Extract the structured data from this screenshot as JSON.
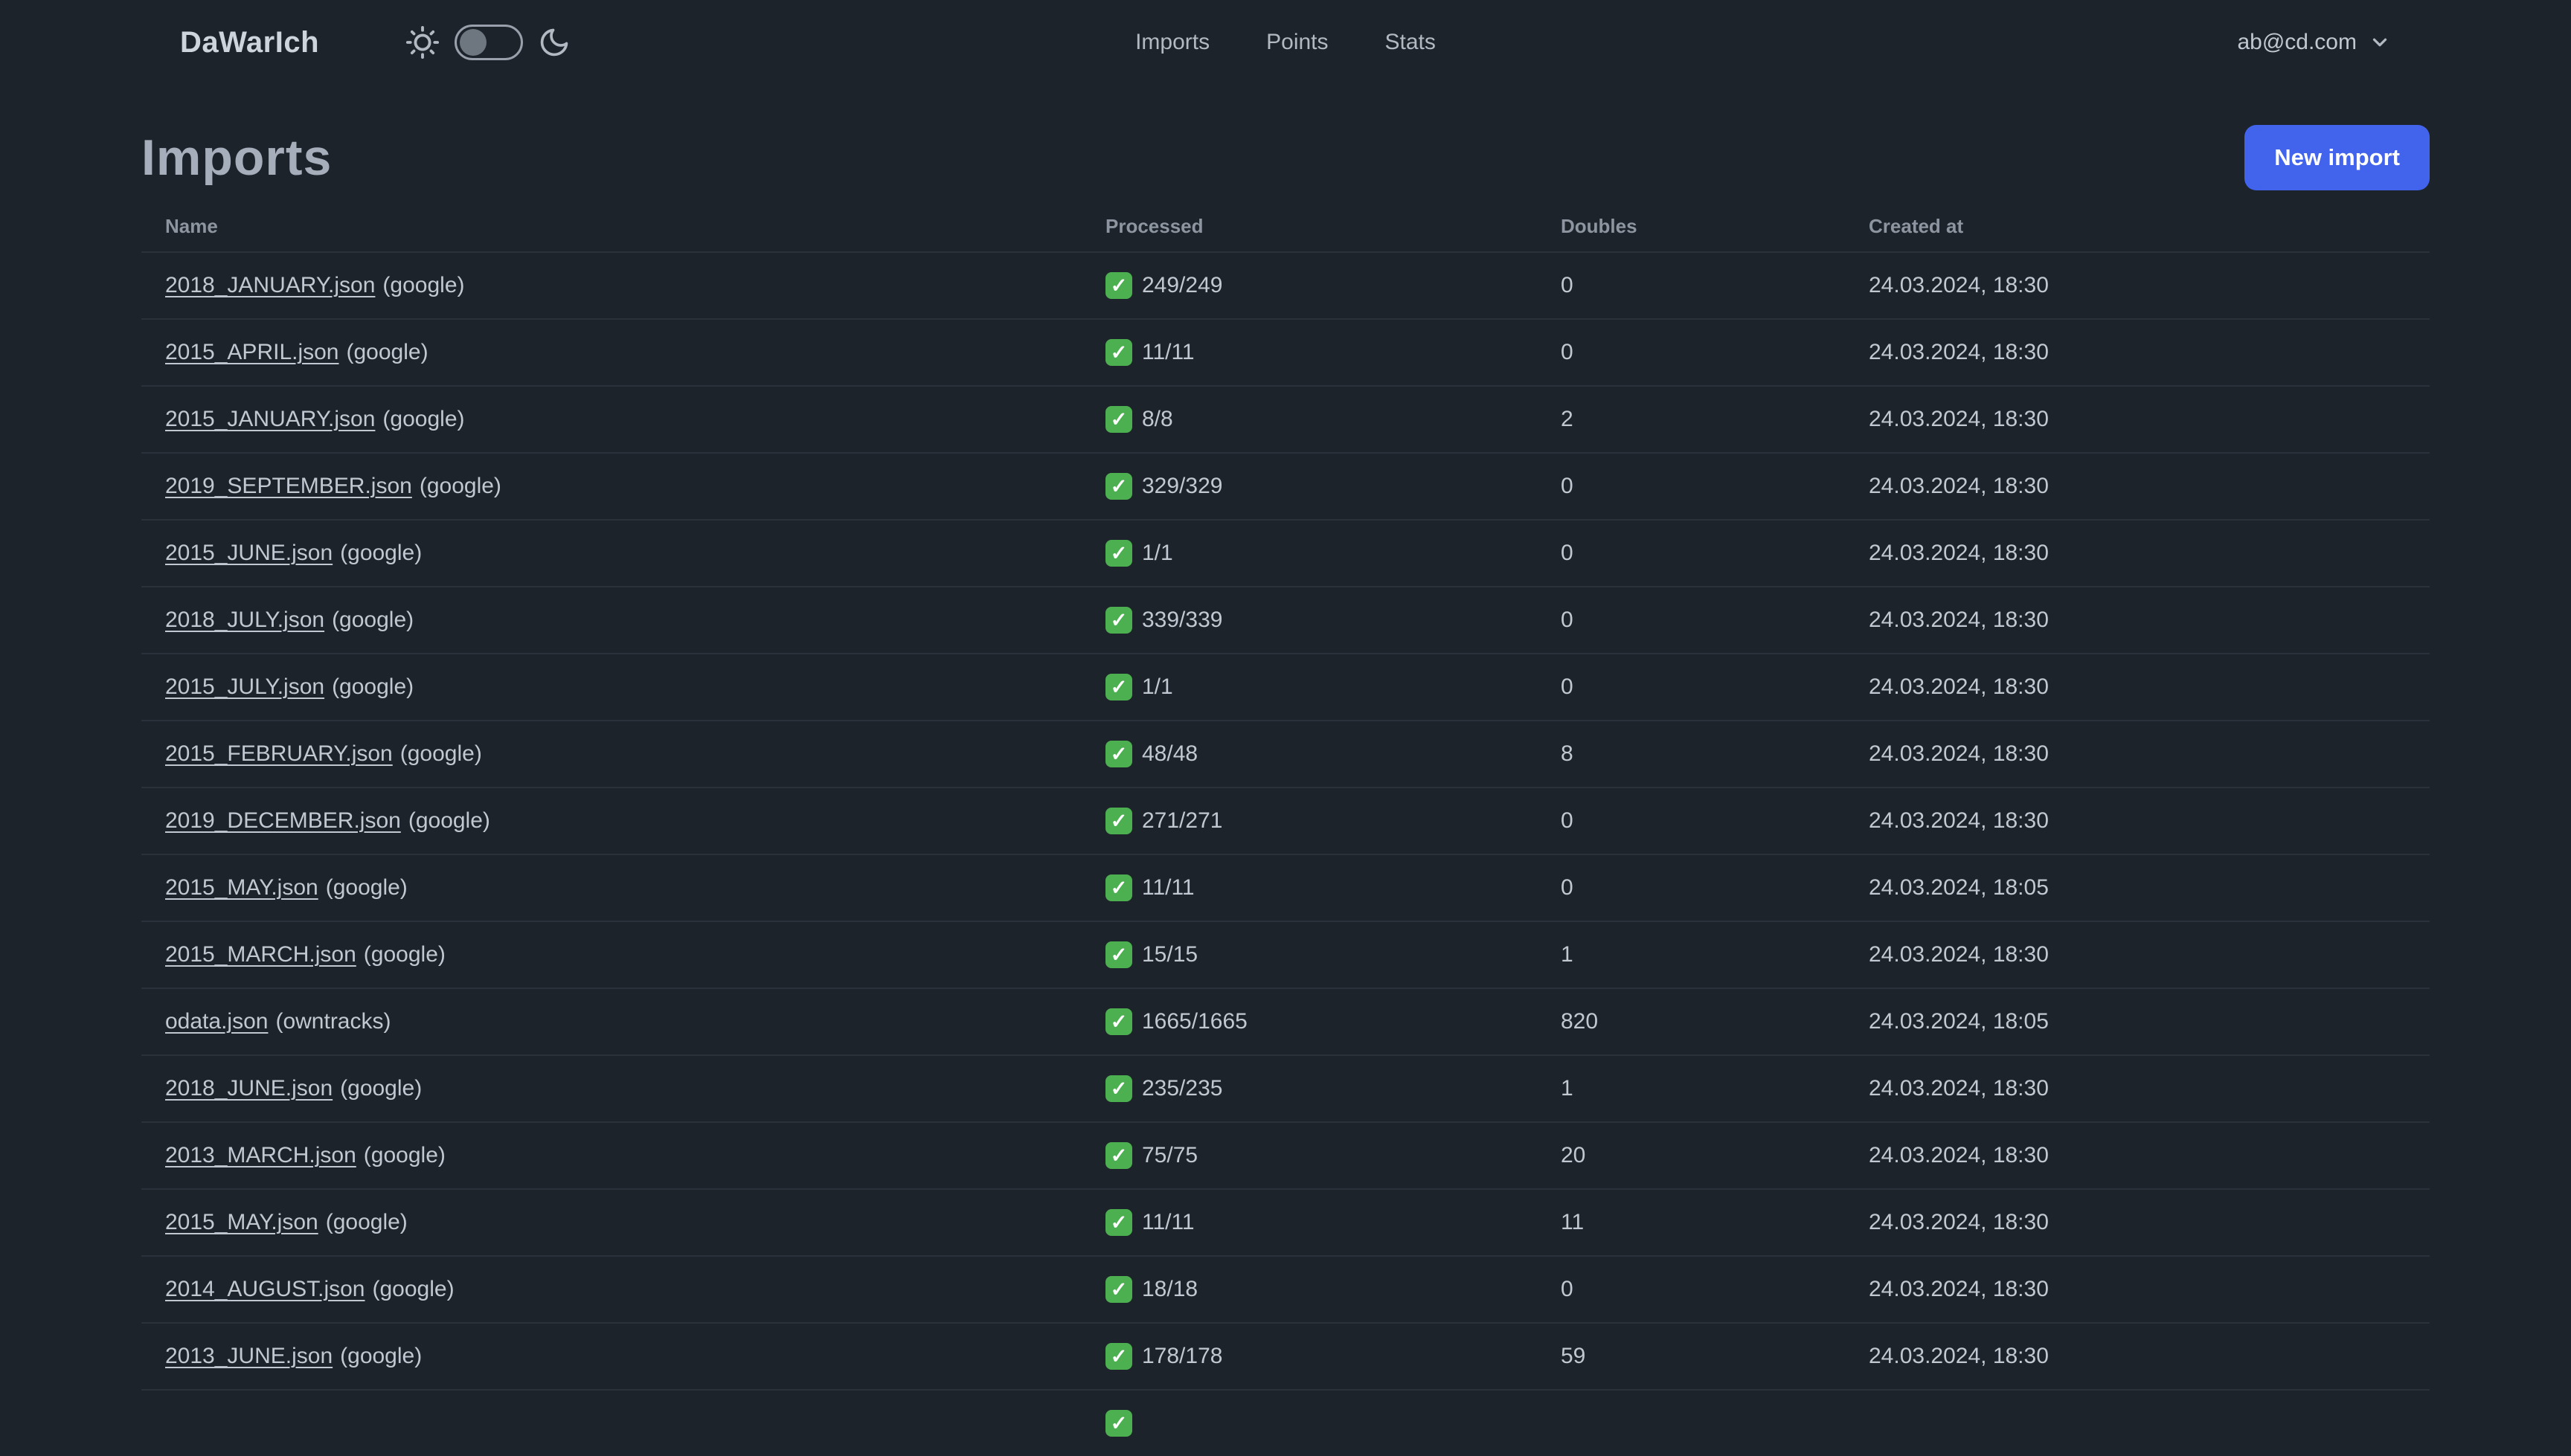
{
  "app": {
    "name": "DaWarIch"
  },
  "nav": {
    "links": [
      {
        "label": "Imports"
      },
      {
        "label": "Points"
      },
      {
        "label": "Stats"
      }
    ],
    "theme_toggle": {
      "checked": false
    },
    "account": {
      "email": "ab@cd.com"
    }
  },
  "page": {
    "title": "Imports",
    "new_import_button": "New import"
  },
  "table": {
    "headers": [
      "Name",
      "Processed",
      "Doubles",
      "Created at"
    ],
    "rows": [
      {
        "name": "2018_JANUARY.json",
        "source": "(google)",
        "processed": "249/249",
        "doubles": "0",
        "created_at": "24.03.2024, 18:30"
      },
      {
        "name": "2015_APRIL.json",
        "source": "(google)",
        "processed": "11/11",
        "doubles": "0",
        "created_at": "24.03.2024, 18:30"
      },
      {
        "name": "2015_JANUARY.json",
        "source": "(google)",
        "processed": "8/8",
        "doubles": "2",
        "created_at": "24.03.2024, 18:30"
      },
      {
        "name": "2019_SEPTEMBER.json",
        "source": "(google)",
        "processed": "329/329",
        "doubles": "0",
        "created_at": "24.03.2024, 18:30"
      },
      {
        "name": "2015_JUNE.json",
        "source": "(google)",
        "processed": "1/1",
        "doubles": "0",
        "created_at": "24.03.2024, 18:30"
      },
      {
        "name": "2018_JULY.json",
        "source": "(google)",
        "processed": "339/339",
        "doubles": "0",
        "created_at": "24.03.2024, 18:30"
      },
      {
        "name": "2015_JULY.json",
        "source": "(google)",
        "processed": "1/1",
        "doubles": "0",
        "created_at": "24.03.2024, 18:30"
      },
      {
        "name": "2015_FEBRUARY.json",
        "source": "(google)",
        "processed": "48/48",
        "doubles": "8",
        "created_at": "24.03.2024, 18:30"
      },
      {
        "name": "2019_DECEMBER.json",
        "source": "(google)",
        "processed": "271/271",
        "doubles": "0",
        "created_at": "24.03.2024, 18:30"
      },
      {
        "name": "2015_MAY.json",
        "source": "(google)",
        "processed": "11/11",
        "doubles": "0",
        "created_at": "24.03.2024, 18:05"
      },
      {
        "name": "2015_MARCH.json",
        "source": "(google)",
        "processed": "15/15",
        "doubles": "1",
        "created_at": "24.03.2024, 18:30"
      },
      {
        "name": "odata.json",
        "source": "(owntracks)",
        "processed": "1665/1665",
        "doubles": "820",
        "created_at": "24.03.2024, 18:05"
      },
      {
        "name": "2018_JUNE.json",
        "source": "(google)",
        "processed": "235/235",
        "doubles": "1",
        "created_at": "24.03.2024, 18:30"
      },
      {
        "name": "2013_MARCH.json",
        "source": "(google)",
        "processed": "75/75",
        "doubles": "20",
        "created_at": "24.03.2024, 18:30"
      },
      {
        "name": "2015_MAY.json",
        "source": "(google)",
        "processed": "11/11",
        "doubles": "11",
        "created_at": "24.03.2024, 18:30"
      },
      {
        "name": "2014_AUGUST.json",
        "source": "(google)",
        "processed": "18/18",
        "doubles": "0",
        "created_at": "24.03.2024, 18:30"
      },
      {
        "name": "2013_JUNE.json",
        "source": "(google)",
        "processed": "178/178",
        "doubles": "59",
        "created_at": "24.03.2024, 18:30"
      }
    ],
    "partial_next_row": {
      "check_icon_visible": true
    }
  },
  "icons": {
    "sun": "sun-icon",
    "moon": "moon-icon",
    "chevron": "chevron-down-icon",
    "check": "check-icon"
  },
  "colors": {
    "background": "#1d232a",
    "accent_blue": "#4263eb",
    "check_green": "#4caf50",
    "text": "#c2c8d1"
  }
}
